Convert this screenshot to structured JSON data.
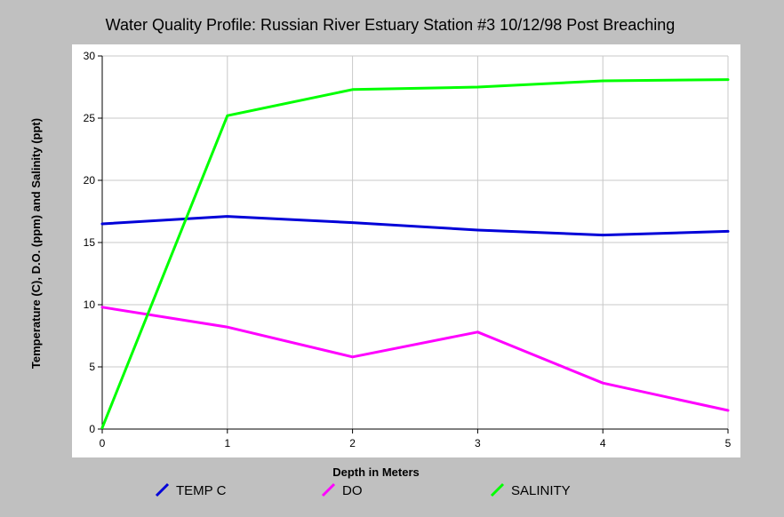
{
  "chart_data": {
    "type": "line",
    "title": "Water Quality Profile: Russian River Estuary Station #3 10/12/98 Post Breaching",
    "xlabel": "Depth in Meters",
    "ylabel": "Temperature (C), D.O. (ppm) and Salinity (ppt)",
    "xlim": [
      0,
      5
    ],
    "ylim": [
      0,
      30
    ],
    "x_ticks": [
      0,
      1,
      2,
      3,
      4,
      5
    ],
    "y_ticks": [
      0,
      5,
      10,
      15,
      20,
      25,
      30
    ],
    "grid": true,
    "legend_position": "bottom",
    "x": [
      0,
      1,
      2,
      3,
      4,
      5
    ],
    "series": [
      {
        "name": "TEMP C",
        "color": "#0000d8",
        "values": [
          16.5,
          17.1,
          16.6,
          16.0,
          15.6,
          15.9
        ]
      },
      {
        "name": "DO",
        "color": "#ff00ff",
        "values": [
          9.8,
          8.2,
          5.8,
          7.8,
          3.7,
          1.5
        ]
      },
      {
        "name": "SALINITY",
        "color": "#00ff00",
        "values": [
          0.1,
          25.2,
          27.3,
          27.5,
          28.0,
          28.1
        ]
      }
    ]
  }
}
